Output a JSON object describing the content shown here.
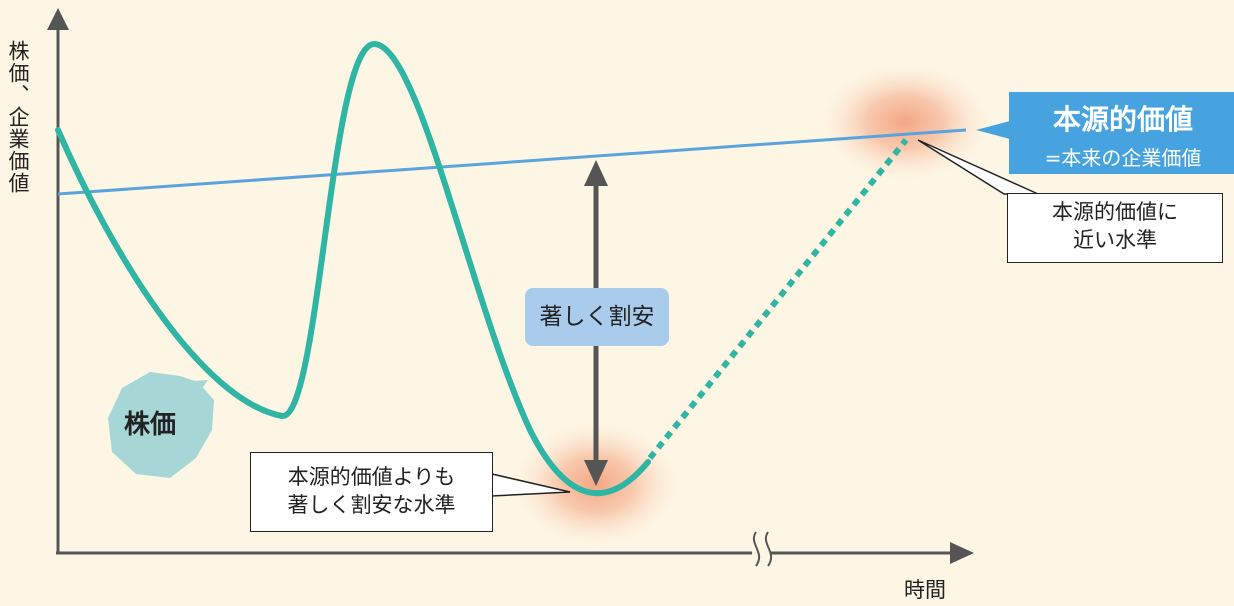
{
  "axes": {
    "y_label": "株価、企業価値",
    "x_label": "時間"
  },
  "labels": {
    "stock_price": "株価",
    "intrinsic_value_title": "本源的価値",
    "intrinsic_value_subtitle": "=本来の企業価値",
    "significantly_cheap": "著しく割安",
    "callout_near_line1": "本源的価値に",
    "callout_near_line2": "近い水準",
    "callout_cheap_line1": "本源的価値よりも",
    "callout_cheap_line2": "著しく割安な水準"
  },
  "colors": {
    "background": "#fdf6e4",
    "stock_curve": "#2fb5a4",
    "intrinsic_line": "#5aa3dc",
    "intrinsic_box": "#46a3df",
    "cheap_label_bg": "#a9cbec",
    "price_bubble": "#a6d6d6",
    "highlight": "#f39a74",
    "arrow": "#555555"
  }
}
